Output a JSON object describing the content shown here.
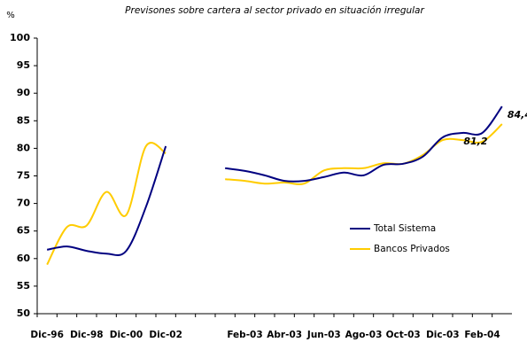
{
  "chart_data": {
    "type": "line",
    "title": "Previsones sobre cartera al sector privado en situación irregular",
    "y_label": "%",
    "categories": [
      "Dic-96",
      null,
      "Dic-98",
      null,
      "Dic-00",
      null,
      "Dic-02",
      null,
      null,
      null,
      "Feb-03",
      null,
      "Abr-03",
      null,
      "Jun-03",
      null,
      "Ago-03",
      null,
      "Oct-03",
      null,
      "Dic-03",
      null,
      "Feb-04",
      null
    ],
    "series": [
      {
        "name": "Total Sistema",
        "color": "#000080",
        "values": [
          61.6,
          62.2,
          61.4,
          60.9,
          61.4,
          69.4,
          80.4,
          null,
          null,
          76.4,
          75.9,
          75.1,
          74.1,
          74.1,
          74.8,
          75.6,
          75.1,
          77.0,
          77.2,
          78.5,
          82.0,
          82.8,
          82.8,
          87.6
        ]
      },
      {
        "name": "Bancos Privados",
        "color": "#ffcc00",
        "values": [
          58.9,
          65.7,
          66.0,
          72.1,
          67.9,
          80.4,
          79.1,
          null,
          null,
          74.4,
          74.1,
          73.6,
          73.8,
          73.6,
          76.0,
          76.4,
          76.4,
          77.3,
          77.2,
          78.8,
          81.5,
          81.5,
          81.2,
          84.4
        ],
        "value_labels": [
          null,
          null,
          null,
          null,
          null,
          null,
          null,
          null,
          null,
          null,
          null,
          null,
          null,
          null,
          null,
          null,
          null,
          null,
          null,
          null,
          null,
          null,
          "81,2",
          "84,4"
        ]
      }
    ],
    "ylim": [
      50,
      100
    ],
    "yticks": [
      50,
      55,
      60,
      65,
      70,
      75,
      80,
      85,
      90,
      95,
      100
    ],
    "grid": false
  }
}
